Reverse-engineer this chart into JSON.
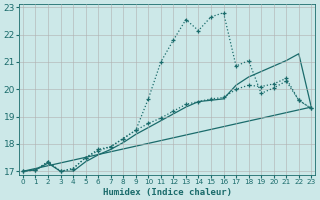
{
  "xlabel": "Humidex (Indice chaleur)",
  "xlim": [
    0,
    23
  ],
  "ylim": [
    17,
    23
  ],
  "yticks": [
    17,
    18,
    19,
    20,
    21,
    22,
    23
  ],
  "xticks": [
    0,
    1,
    2,
    3,
    4,
    5,
    6,
    7,
    8,
    9,
    10,
    11,
    12,
    13,
    14,
    15,
    16,
    17,
    18,
    19,
    20,
    21,
    22,
    23
  ],
  "background_color": "#cce8e8",
  "line_color": "#1a6b6b",
  "grid_color": "#b0b0b0",
  "lines": [
    {
      "x": [
        0,
        23
      ],
      "y": [
        17.0,
        19.35
      ],
      "style": "solid",
      "marker": false,
      "linewidth": 0.9
    },
    {
      "x": [
        0,
        1,
        2,
        3,
        4,
        5,
        6,
        7,
        8,
        9,
        10,
        11,
        12,
        13,
        14,
        15,
        16,
        17,
        18,
        19,
        20,
        21,
        22,
        23
      ],
      "y": [
        17.0,
        17.05,
        17.3,
        17.0,
        17.0,
        17.35,
        17.6,
        17.8,
        18.05,
        18.35,
        18.6,
        18.85,
        19.1,
        19.35,
        19.55,
        19.6,
        19.65,
        20.15,
        20.45,
        20.65,
        20.85,
        21.05,
        21.3,
        19.35
      ],
      "style": "solid",
      "marker": false,
      "linewidth": 0.9
    },
    {
      "x": [
        0,
        1,
        2,
        3,
        4,
        5,
        6,
        7,
        8,
        9,
        10,
        11,
        12,
        13,
        14,
        15,
        16,
        17,
        18,
        19,
        20,
        21,
        22,
        23
      ],
      "y": [
        17.0,
        17.05,
        17.35,
        17.0,
        17.1,
        17.5,
        17.75,
        17.9,
        18.2,
        18.5,
        18.75,
        18.95,
        19.2,
        19.45,
        19.55,
        19.65,
        19.7,
        20.0,
        20.15,
        20.1,
        20.2,
        20.4,
        19.6,
        19.3
      ],
      "style": "dotted",
      "marker": true,
      "linewidth": 0.9
    },
    {
      "x": [
        0,
        1,
        2,
        3,
        4,
        5,
        6,
        7,
        8,
        9,
        10,
        11,
        12,
        13,
        14,
        15,
        16,
        17,
        18,
        19,
        20,
        21,
        22,
        23
      ],
      "y": [
        17.0,
        17.05,
        17.35,
        17.0,
        17.1,
        17.5,
        17.8,
        17.9,
        18.2,
        18.5,
        19.65,
        21.0,
        21.8,
        22.55,
        22.15,
        22.65,
        22.8,
        20.85,
        21.05,
        19.85,
        20.05,
        20.3,
        19.6,
        19.3
      ],
      "style": "dotted",
      "marker": true,
      "linewidth": 0.9
    }
  ]
}
